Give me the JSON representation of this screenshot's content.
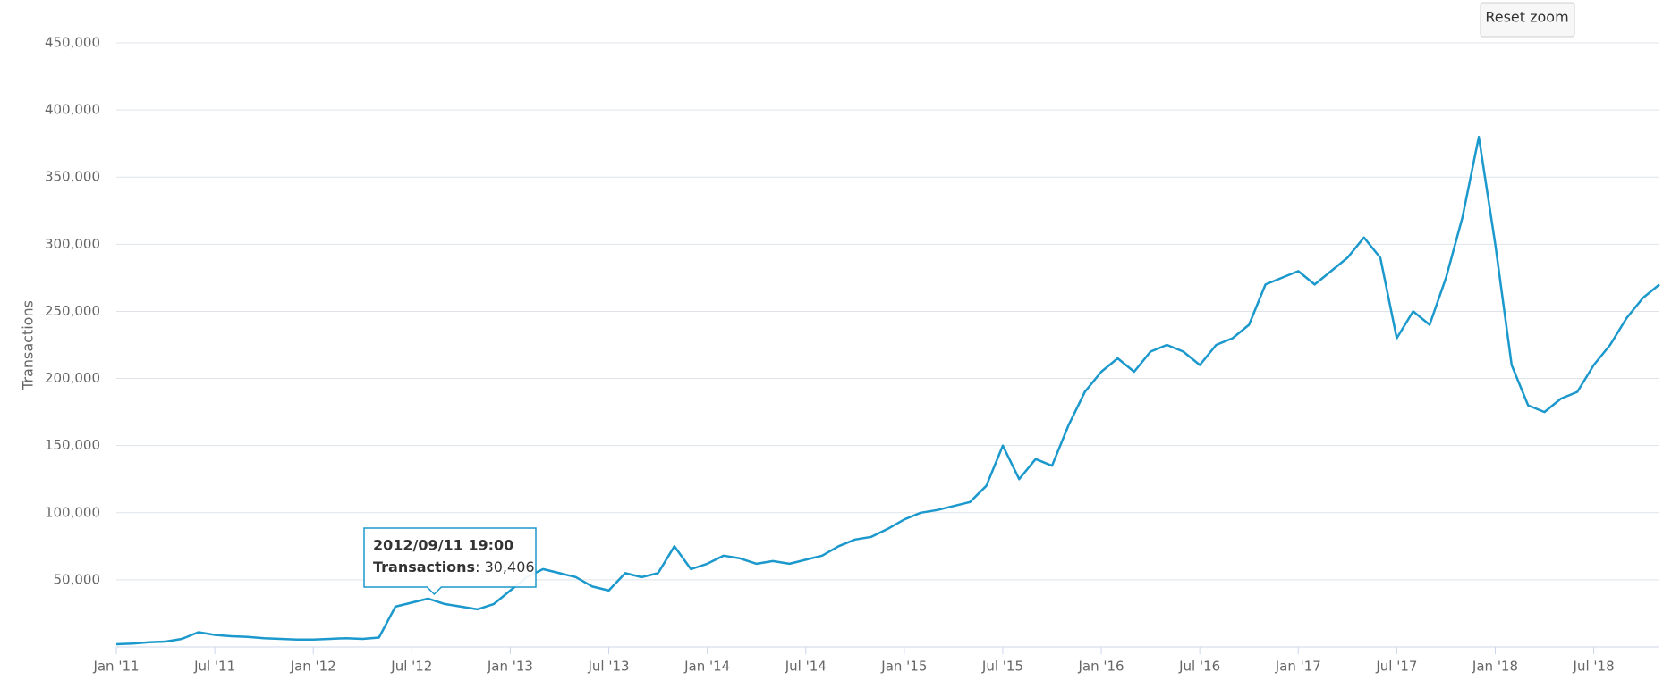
{
  "chart_data": {
    "type": "line",
    "y_label": "Transactions",
    "color": "#1b98cc",
    "grid": true,
    "reset_button": "Reset zoom",
    "x": [
      "2011-01",
      "2011-02",
      "2011-03",
      "2011-04",
      "2011-05",
      "2011-06",
      "2011-07",
      "2011-08",
      "2011-09",
      "2011-10",
      "2011-11",
      "2011-12",
      "2012-01",
      "2012-02",
      "2012-03",
      "2012-04",
      "2012-05",
      "2012-06",
      "2012-07",
      "2012-08",
      "2012-09",
      "2012-10",
      "2012-11",
      "2012-12",
      "2013-01",
      "2013-02",
      "2013-03",
      "2013-04",
      "2013-05",
      "2013-06",
      "2013-07",
      "2013-08",
      "2013-09",
      "2013-10",
      "2013-11",
      "2013-12",
      "2014-01",
      "2014-02",
      "2014-03",
      "2014-04",
      "2014-05",
      "2014-06",
      "2014-07",
      "2014-08",
      "2014-09",
      "2014-10",
      "2014-11",
      "2014-12",
      "2015-01",
      "2015-02",
      "2015-03",
      "2015-04",
      "2015-05",
      "2015-06",
      "2015-07",
      "2015-08",
      "2015-09",
      "2015-10",
      "2015-11",
      "2015-12",
      "2016-01",
      "2016-02",
      "2016-03",
      "2016-04",
      "2016-05",
      "2016-06",
      "2016-07",
      "2016-08",
      "2016-09",
      "2016-10",
      "2016-11",
      "2016-12",
      "2017-01",
      "2017-02",
      "2017-03",
      "2017-04",
      "2017-05",
      "2017-06",
      "2017-07",
      "2017-08",
      "2017-09",
      "2017-10",
      "2017-11",
      "2017-12",
      "2018-01",
      "2018-02",
      "2018-03",
      "2018-04",
      "2018-05",
      "2018-06",
      "2018-07",
      "2018-08",
      "2018-09",
      "2018-10",
      "2018-11"
    ],
    "values": [
      2000,
      2500,
      3500,
      4000,
      6000,
      11000,
      9000,
      8000,
      7500,
      6500,
      6000,
      5500,
      5500,
      6000,
      6500,
      6000,
      7000,
      30000,
      33000,
      36000,
      32000,
      30000,
      28000,
      32000,
      42000,
      52000,
      58000,
      55000,
      52000,
      45000,
      42000,
      55000,
      52000,
      55000,
      75000,
      58000,
      62000,
      68000,
      66000,
      62000,
      64000,
      62000,
      65000,
      68000,
      75000,
      80000,
      82000,
      88000,
      95000,
      100000,
      102000,
      105000,
      108000,
      120000,
      150000,
      125000,
      140000,
      135000,
      165000,
      190000,
      205000,
      215000,
      205000,
      220000,
      225000,
      220000,
      210000,
      225000,
      230000,
      240000,
      270000,
      275000,
      280000,
      270000,
      280000,
      290000,
      305000,
      290000,
      230000,
      250000,
      240000,
      275000,
      320000,
      380000,
      300000,
      210000,
      180000,
      175000,
      185000,
      190000,
      210000,
      225000,
      245000,
      260000,
      270000
    ],
    "xlim": [
      "2011-01",
      "2018-11"
    ],
    "xticks": [
      {
        "value": "2011-01",
        "label": "Jan '11"
      },
      {
        "value": "2011-07",
        "label": "Jul '11"
      },
      {
        "value": "2012-01",
        "label": "Jan '12"
      },
      {
        "value": "2012-07",
        "label": "Jul '12"
      },
      {
        "value": "2013-01",
        "label": "Jan '13"
      },
      {
        "value": "2013-07",
        "label": "Jul '13"
      },
      {
        "value": "2014-01",
        "label": "Jan '14"
      },
      {
        "value": "2014-07",
        "label": "Jul '14"
      },
      {
        "value": "2015-01",
        "label": "Jan '15"
      },
      {
        "value": "2015-07",
        "label": "Jul '15"
      },
      {
        "value": "2016-01",
        "label": "Jan '16"
      },
      {
        "value": "2016-07",
        "label": "Jul '16"
      },
      {
        "value": "2017-01",
        "label": "Jan '17"
      },
      {
        "value": "2017-07",
        "label": "Jul '17"
      },
      {
        "value": "2018-01",
        "label": "Jan '18"
      },
      {
        "value": "2018-07",
        "label": "Jul '18"
      }
    ],
    "ylim": [
      0,
      450000
    ],
    "yticks": [
      {
        "value": 50000,
        "label": "50,000"
      },
      {
        "value": 100000,
        "label": "100,000"
      },
      {
        "value": 150000,
        "label": "150,000"
      },
      {
        "value": 200000,
        "label": "200,000"
      },
      {
        "value": 250000,
        "label": "250,000"
      },
      {
        "value": 300000,
        "label": "300,000"
      },
      {
        "value": 350000,
        "label": "350,000"
      },
      {
        "value": 400000,
        "label": "400,000"
      },
      {
        "value": 450000,
        "label": "450,000"
      }
    ],
    "tooltip": {
      "title": "2012/09/11 19:00",
      "label": "Transactions",
      "value": 30406,
      "value_label": "30,406"
    }
  }
}
